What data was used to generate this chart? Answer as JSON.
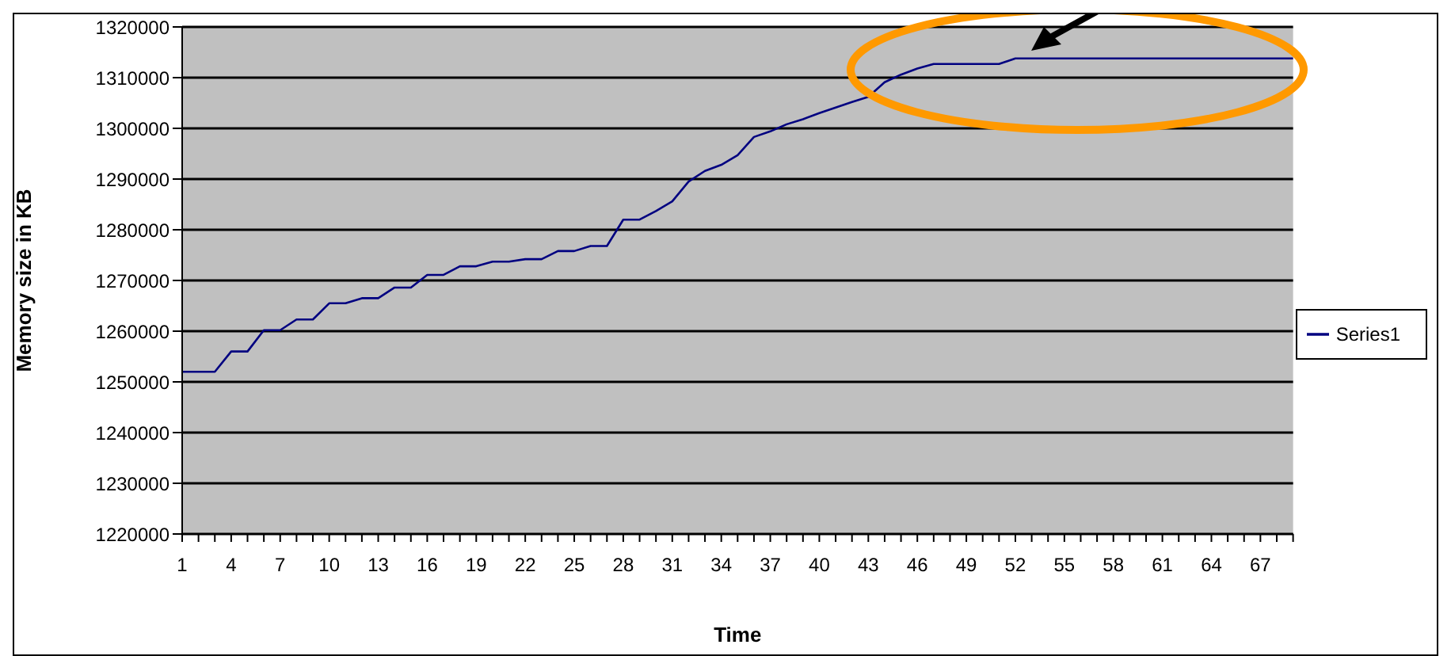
{
  "chart_data": {
    "type": "line",
    "xlabel": "Time",
    "ylabel": "Memory size in KB",
    "categories": [
      "1",
      null,
      null,
      "4",
      null,
      null,
      "7",
      null,
      null,
      "10",
      null,
      null,
      "13",
      null,
      null,
      "16",
      null,
      null,
      "19",
      null,
      null,
      "22",
      null,
      null,
      "25",
      null,
      null,
      "28",
      null,
      null,
      "31",
      null,
      null,
      "34",
      null,
      null,
      "37",
      null,
      null,
      "40",
      null,
      null,
      "43",
      null,
      null,
      "46",
      null,
      null,
      "49",
      null,
      null,
      "52",
      null,
      null,
      "55",
      null,
      null,
      "58",
      null,
      null,
      "61",
      null,
      null,
      "64",
      null,
      null,
      "67",
      null,
      null
    ],
    "series": [
      {
        "name": "Series1",
        "color": "#000080",
        "values": [
          1252000,
          1252000,
          1252000,
          1256000,
          1256000,
          1260200,
          1260200,
          1262300,
          1262300,
          1265500,
          1265500,
          1266500,
          1266500,
          1268600,
          1268600,
          1271100,
          1271100,
          1272800,
          1272800,
          1273700,
          1273700,
          1274200,
          1274200,
          1275800,
          1275800,
          1276800,
          1276800,
          1282000,
          1282000,
          1283700,
          1285600,
          1289500,
          1291600,
          1292800,
          1294700,
          1298300,
          1299400,
          1300800,
          1301800,
          1303000,
          1304100,
          1305200,
          1306200,
          1309100,
          1310600,
          1311800,
          1312700,
          1312700,
          1312700,
          1312700,
          1312700,
          1313800,
          1313800,
          1313800,
          1313800,
          1313800,
          1313800,
          1313800,
          1313800,
          1313800,
          1313800,
          1313800,
          1313800,
          1313800,
          1313800,
          1313800,
          1313800,
          1313800,
          1313800
        ]
      }
    ],
    "ylim": [
      1220000,
      1320000
    ],
    "yticks": [
      1220000,
      1230000,
      1240000,
      1250000,
      1260000,
      1270000,
      1280000,
      1290000,
      1300000,
      1310000,
      1320000
    ],
    "grid": "y",
    "legend": "right",
    "marker": "none",
    "line_style": "solid"
  }
}
